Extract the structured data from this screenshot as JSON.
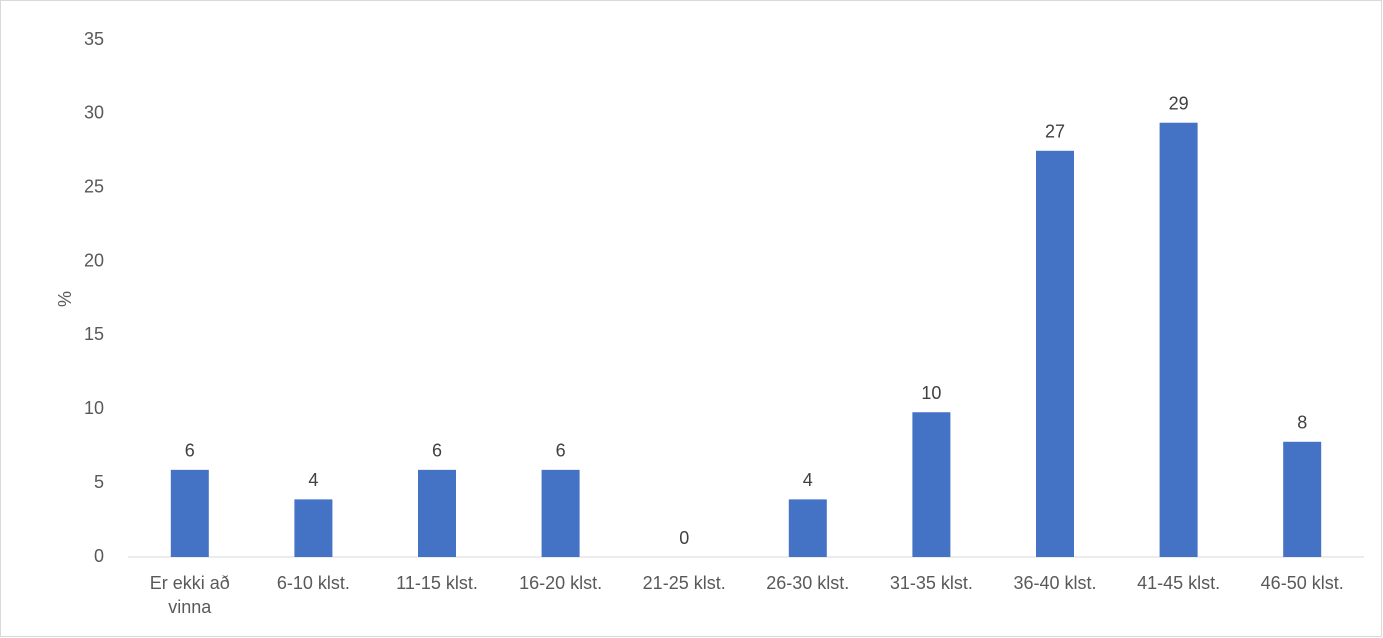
{
  "chart_data": {
    "type": "bar",
    "title": "",
    "xlabel": "",
    "ylabel": "%",
    "ylim": [
      0,
      35
    ],
    "yticks": [
      0,
      5,
      10,
      15,
      20,
      25,
      30,
      35
    ],
    "grid": false,
    "legend": "none",
    "bar_color": "#4472C4",
    "categories": [
      [
        "Er ekki að",
        "vinna"
      ],
      [
        "6-10 klst."
      ],
      [
        "11-15 klst."
      ],
      [
        "16-20 klst."
      ],
      [
        "21-25 klst."
      ],
      [
        "26-30 klst."
      ],
      [
        "31-35 klst."
      ],
      [
        "36-40 klst."
      ],
      [
        "41-45 klst."
      ],
      [
        "46-50 klst."
      ]
    ],
    "values": [
      5.9,
      3.9,
      5.9,
      5.9,
      0,
      3.9,
      9.8,
      27.5,
      29.4,
      7.8
    ],
    "data_labels": [
      "6",
      "4",
      "6",
      "6",
      "0",
      "4",
      "10",
      "27",
      "29",
      "8"
    ]
  }
}
